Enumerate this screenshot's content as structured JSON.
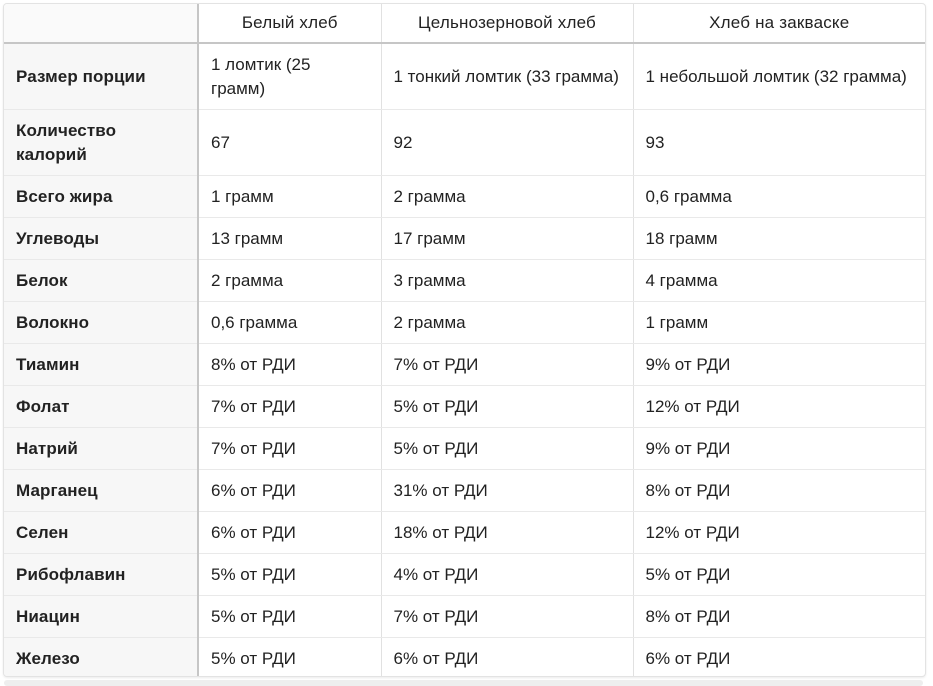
{
  "table": {
    "headers": [
      "",
      "Белый хлеб",
      "Цельнозерновой хлеб",
      "Хлеб на закваске"
    ],
    "rows": [
      {
        "label": "Размер порции",
        "values": [
          "1 ломтик (25 грамм)",
          "1 тонкий ломтик (33 грамма)",
          "1 небольшой ломтик (32 грамма)"
        ]
      },
      {
        "label": "Количество калорий",
        "values": [
          "67",
          "92",
          "93"
        ]
      },
      {
        "label": "Всего жира",
        "values": [
          "1 грамм",
          "2 грамма",
          "0,6 грамма"
        ]
      },
      {
        "label": "Углеводы",
        "values": [
          "13 грамм",
          "17 грамм",
          "18 грамм"
        ]
      },
      {
        "label": "Белок",
        "values": [
          "2 грамма",
          "3 грамма",
          "4 грамма"
        ]
      },
      {
        "label": "Волокно",
        "values": [
          "0,6 грамма",
          "2 грамма",
          "1 грамм"
        ]
      },
      {
        "label": "Тиамин",
        "values": [
          "8% от РДИ",
          "7% от РДИ",
          "9% от РДИ"
        ]
      },
      {
        "label": "Фолат",
        "values": [
          "7% от РДИ",
          "5% от РДИ",
          "12% от РДИ"
        ]
      },
      {
        "label": "Натрий",
        "values": [
          "7% от РДИ",
          "5% от РДИ",
          "9% от РДИ"
        ]
      },
      {
        "label": "Марганец",
        "values": [
          "6% от РДИ",
          "31% от РДИ",
          "8% от РДИ"
        ]
      },
      {
        "label": "Селен",
        "values": [
          "6% от РДИ",
          "18% от РДИ",
          "12% от РДИ"
        ]
      },
      {
        "label": "Рибофлавин",
        "values": [
          "5% от РДИ",
          "4% от РДИ",
          "5% от РДИ"
        ]
      },
      {
        "label": "Ниацин",
        "values": [
          "5% от РДИ",
          "7% от РДИ",
          "8% от РДИ"
        ]
      },
      {
        "label": "Железо",
        "values": [
          "5% от РДИ",
          "6% от РДИ",
          "6% от РДИ"
        ]
      }
    ]
  }
}
